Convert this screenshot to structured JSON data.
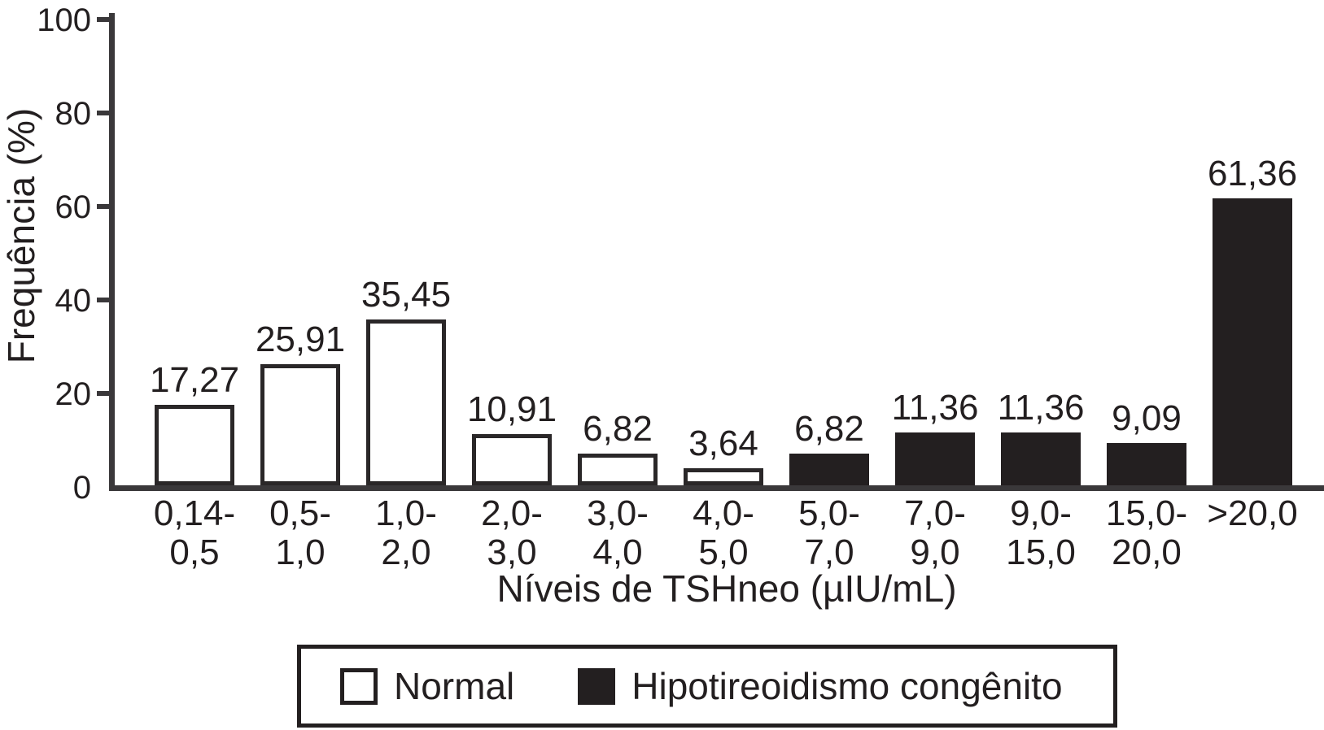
{
  "colors": {
    "ink": "#231f20",
    "axis": "#3a383a",
    "bar_normal_fill": "#ffffff",
    "bar_hc_fill": "#231f20",
    "background": "#ffffff"
  },
  "chart_data": {
    "type": "bar",
    "title": "",
    "ylabel": "Frequência (%)",
    "xlabel": "Níveis de TSHneo (µIU/mL)",
    "ylim": [
      0,
      100
    ],
    "yticks": [
      0,
      20,
      40,
      60,
      80,
      100
    ],
    "grid": false,
    "legend_position": "bottom",
    "categories": [
      [
        "0,14-",
        "0,5"
      ],
      [
        "0,5-",
        "1,0"
      ],
      [
        "1,0-",
        "2,0"
      ],
      [
        "2,0-",
        "3,0"
      ],
      [
        "3,0-",
        "4,0"
      ],
      [
        "4,0-",
        "5,0"
      ],
      [
        "5,0-",
        "7,0"
      ],
      [
        "7,0-",
        "9,0"
      ],
      [
        "9,0-",
        "15,0"
      ],
      [
        "15,0-",
        "20,0"
      ],
      [
        ">20,0"
      ]
    ],
    "values": [
      17.27,
      25.91,
      35.45,
      10.91,
      6.82,
      3.64,
      6.82,
      11.36,
      11.36,
      9.09,
      61.36
    ],
    "value_labels": [
      "17,27",
      "25,91",
      "35,45",
      "10,91",
      "6,82",
      "3,64",
      "6,82",
      "11,36",
      "11,36",
      "9,09",
      "61,36"
    ],
    "series": [
      {
        "name": "Normal",
        "fill": "#ffffff",
        "style": "outlined"
      },
      {
        "name": "Hipotireoidismo congênito",
        "fill": "#231f20",
        "style": "filled"
      }
    ],
    "bar_series": [
      0,
      0,
      0,
      0,
      0,
      0,
      1,
      1,
      1,
      1,
      1
    ]
  }
}
